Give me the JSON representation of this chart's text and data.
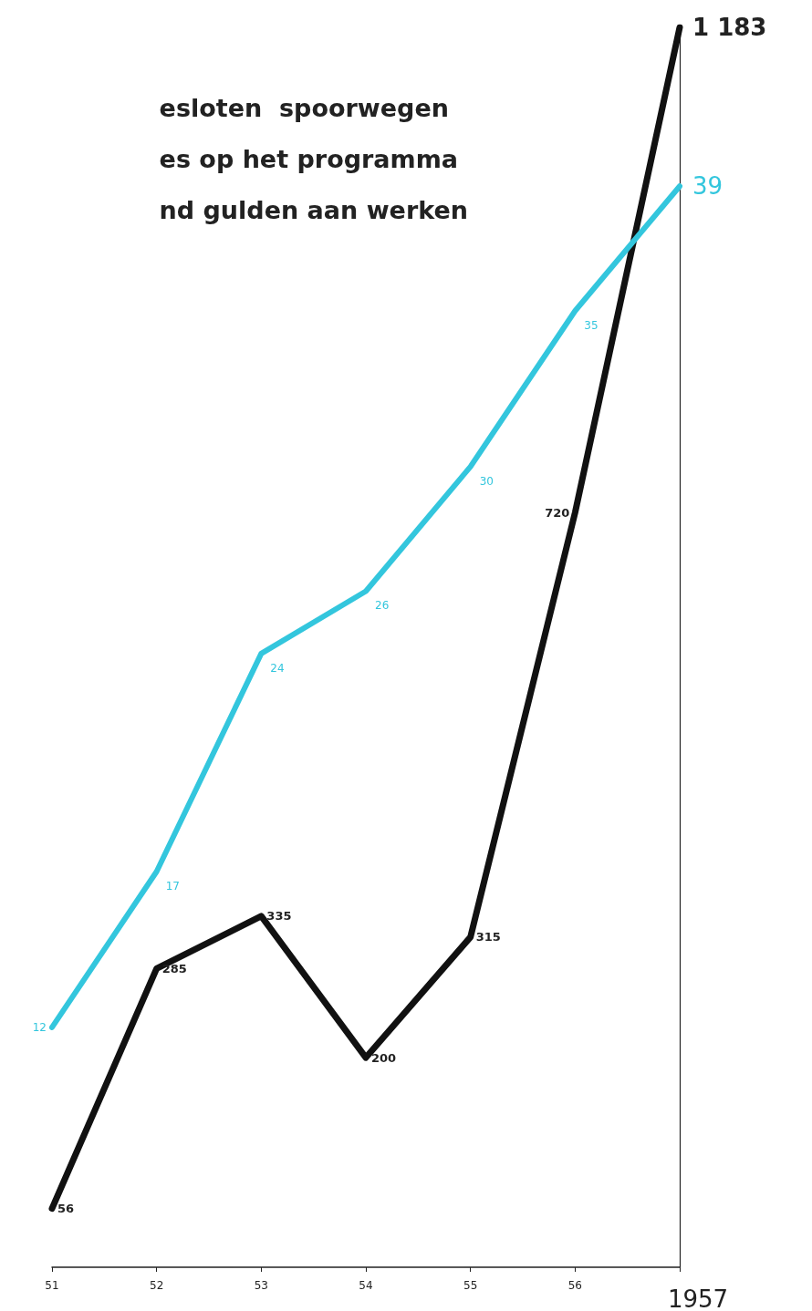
{
  "chart_data": {
    "type": "line",
    "title": "esloten  spoorwegen\nes op het programma\nnd gulden aan werken",
    "categories": [
      "51",
      "52",
      "53",
      "54",
      "55",
      "56",
      "1957"
    ],
    "series": [
      {
        "color": "#111111",
        "values": [
          56,
          285,
          335,
          200,
          315,
          720,
          1183
        ],
        "value_labels": [
          "56",
          "285",
          "335",
          "200",
          "315",
          "720",
          "1 183"
        ]
      },
      {
        "color": "#33c6dd",
        "axis": "y2",
        "values": [
          12,
          17,
          24,
          26,
          30,
          35,
          39
        ],
        "value_labels": [
          "12",
          "17",
          "24",
          "26",
          "30",
          "35",
          "39"
        ]
      }
    ],
    "ylim": [
      0,
      1183
    ],
    "y2lim": [
      4.3,
      44.1
    ],
    "tick_labels": "x",
    "grid": false,
    "marker": "none",
    "line_style": "solid"
  }
}
